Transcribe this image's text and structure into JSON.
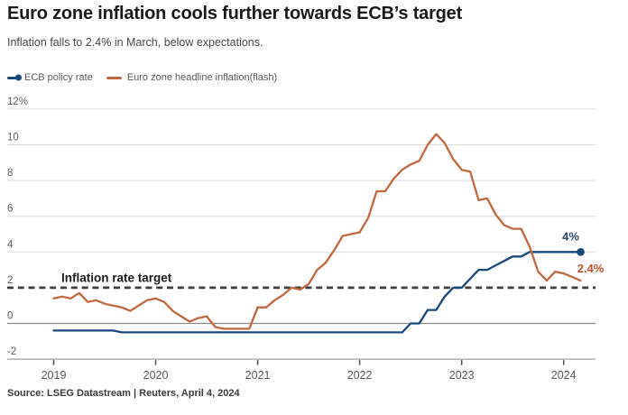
{
  "header": {
    "title": "Euro zone inflation cools further towards ECB’s target",
    "subtitle": "Inflation falls to 2.4% in March, below expectations."
  },
  "legend": {
    "items": [
      {
        "label": "ECB policy rate",
        "color": "#174a7c",
        "marker": "line-with-dot"
      },
      {
        "label": "Euro zone headline inflation(flash)",
        "color": "#c2683c",
        "marker": "line"
      }
    ]
  },
  "chart_data": {
    "type": "line",
    "title": "Euro zone inflation cools further towards ECB’s target",
    "xlabel": "",
    "ylabel": "",
    "x_start": "2019-01",
    "frequency": "monthly",
    "xlim": [
      "2019-01",
      "2024-03"
    ],
    "ylim": [
      -2,
      12
    ],
    "grid": true,
    "legend_position": "top-left",
    "x_ticks": {
      "labels": [
        "2019",
        "2020",
        "2021",
        "2022",
        "2023",
        "2024"
      ],
      "month_indices": [
        0,
        12,
        24,
        36,
        48,
        60
      ]
    },
    "y_ticks": [
      {
        "value": 12,
        "label": "12%"
      },
      {
        "value": 10,
        "label": "10"
      },
      {
        "value": 8,
        "label": "8"
      },
      {
        "value": 6,
        "label": "6"
      },
      {
        "value": 4,
        "label": "4"
      },
      {
        "value": 2,
        "label": "2"
      },
      {
        "value": 0,
        "label": "0"
      },
      {
        "value": -2,
        "label": "-2"
      }
    ],
    "target_line": {
      "value": 2,
      "label": "Inflation rate target",
      "style": "dashed",
      "color": "#3f3f3f"
    },
    "series": [
      {
        "name": "ECB policy rate",
        "color": "#174a7c",
        "end_dot": true,
        "end_label": "4%",
        "end_label_color": "#2c4a68",
        "end_label_offset": {
          "dx": -11,
          "dy": -13
        },
        "values": [
          -0.4,
          -0.4,
          -0.4,
          -0.4,
          -0.4,
          -0.4,
          -0.4,
          -0.4,
          -0.5,
          -0.5,
          -0.5,
          -0.5,
          -0.5,
          -0.5,
          -0.5,
          -0.5,
          -0.5,
          -0.5,
          -0.5,
          -0.5,
          -0.5,
          -0.5,
          -0.5,
          -0.5,
          -0.5,
          -0.5,
          -0.5,
          -0.5,
          -0.5,
          -0.5,
          -0.5,
          -0.5,
          -0.5,
          -0.5,
          -0.5,
          -0.5,
          -0.5,
          -0.5,
          -0.5,
          -0.5,
          -0.5,
          -0.5,
          0.0,
          0.0,
          0.75,
          0.75,
          1.5,
          2.0,
          2.0,
          2.5,
          3.0,
          3.0,
          3.25,
          3.5,
          3.75,
          3.75,
          4.0,
          4.0,
          4.0,
          4.0,
          4.0,
          4.0,
          4.0
        ]
      },
      {
        "name": "Euro zone headline inflation(flash)",
        "color": "#c2683c",
        "end_dot": false,
        "end_label": "2.4%",
        "end_label_color": "#c0512b",
        "end_label_offset": {
          "dx": 11,
          "dy": -9
        },
        "values": [
          1.4,
          1.5,
          1.4,
          1.7,
          1.2,
          1.3,
          1.1,
          1.0,
          0.9,
          0.7,
          1.0,
          1.3,
          1.4,
          1.2,
          0.7,
          0.4,
          0.1,
          0.3,
          0.4,
          -0.2,
          -0.3,
          -0.3,
          -0.3,
          -0.3,
          0.9,
          0.9,
          1.3,
          1.6,
          2.0,
          1.9,
          2.2,
          3.0,
          3.4,
          4.1,
          4.9,
          5.0,
          5.1,
          5.9,
          7.4,
          7.4,
          8.1,
          8.6,
          8.9,
          9.1,
          10.0,
          10.6,
          10.1,
          9.2,
          8.6,
          8.5,
          6.9,
          7.0,
          6.1,
          5.5,
          5.3,
          5.3,
          4.3,
          2.9,
          2.4,
          2.9,
          2.8,
          2.6,
          2.4
        ]
      }
    ],
    "style_colors": {
      "gridline": "#dcdcdc",
      "zero_line": "#8a8a8a",
      "axis_line": "#9f9f9f",
      "tick_mark": "#4a4a4a",
      "tick_label": "#5c5c5c",
      "target_label": "#1b1b1b"
    }
  },
  "source": {
    "text": "Source: LSEG Datastream | Reuters, April 4, 2024"
  }
}
